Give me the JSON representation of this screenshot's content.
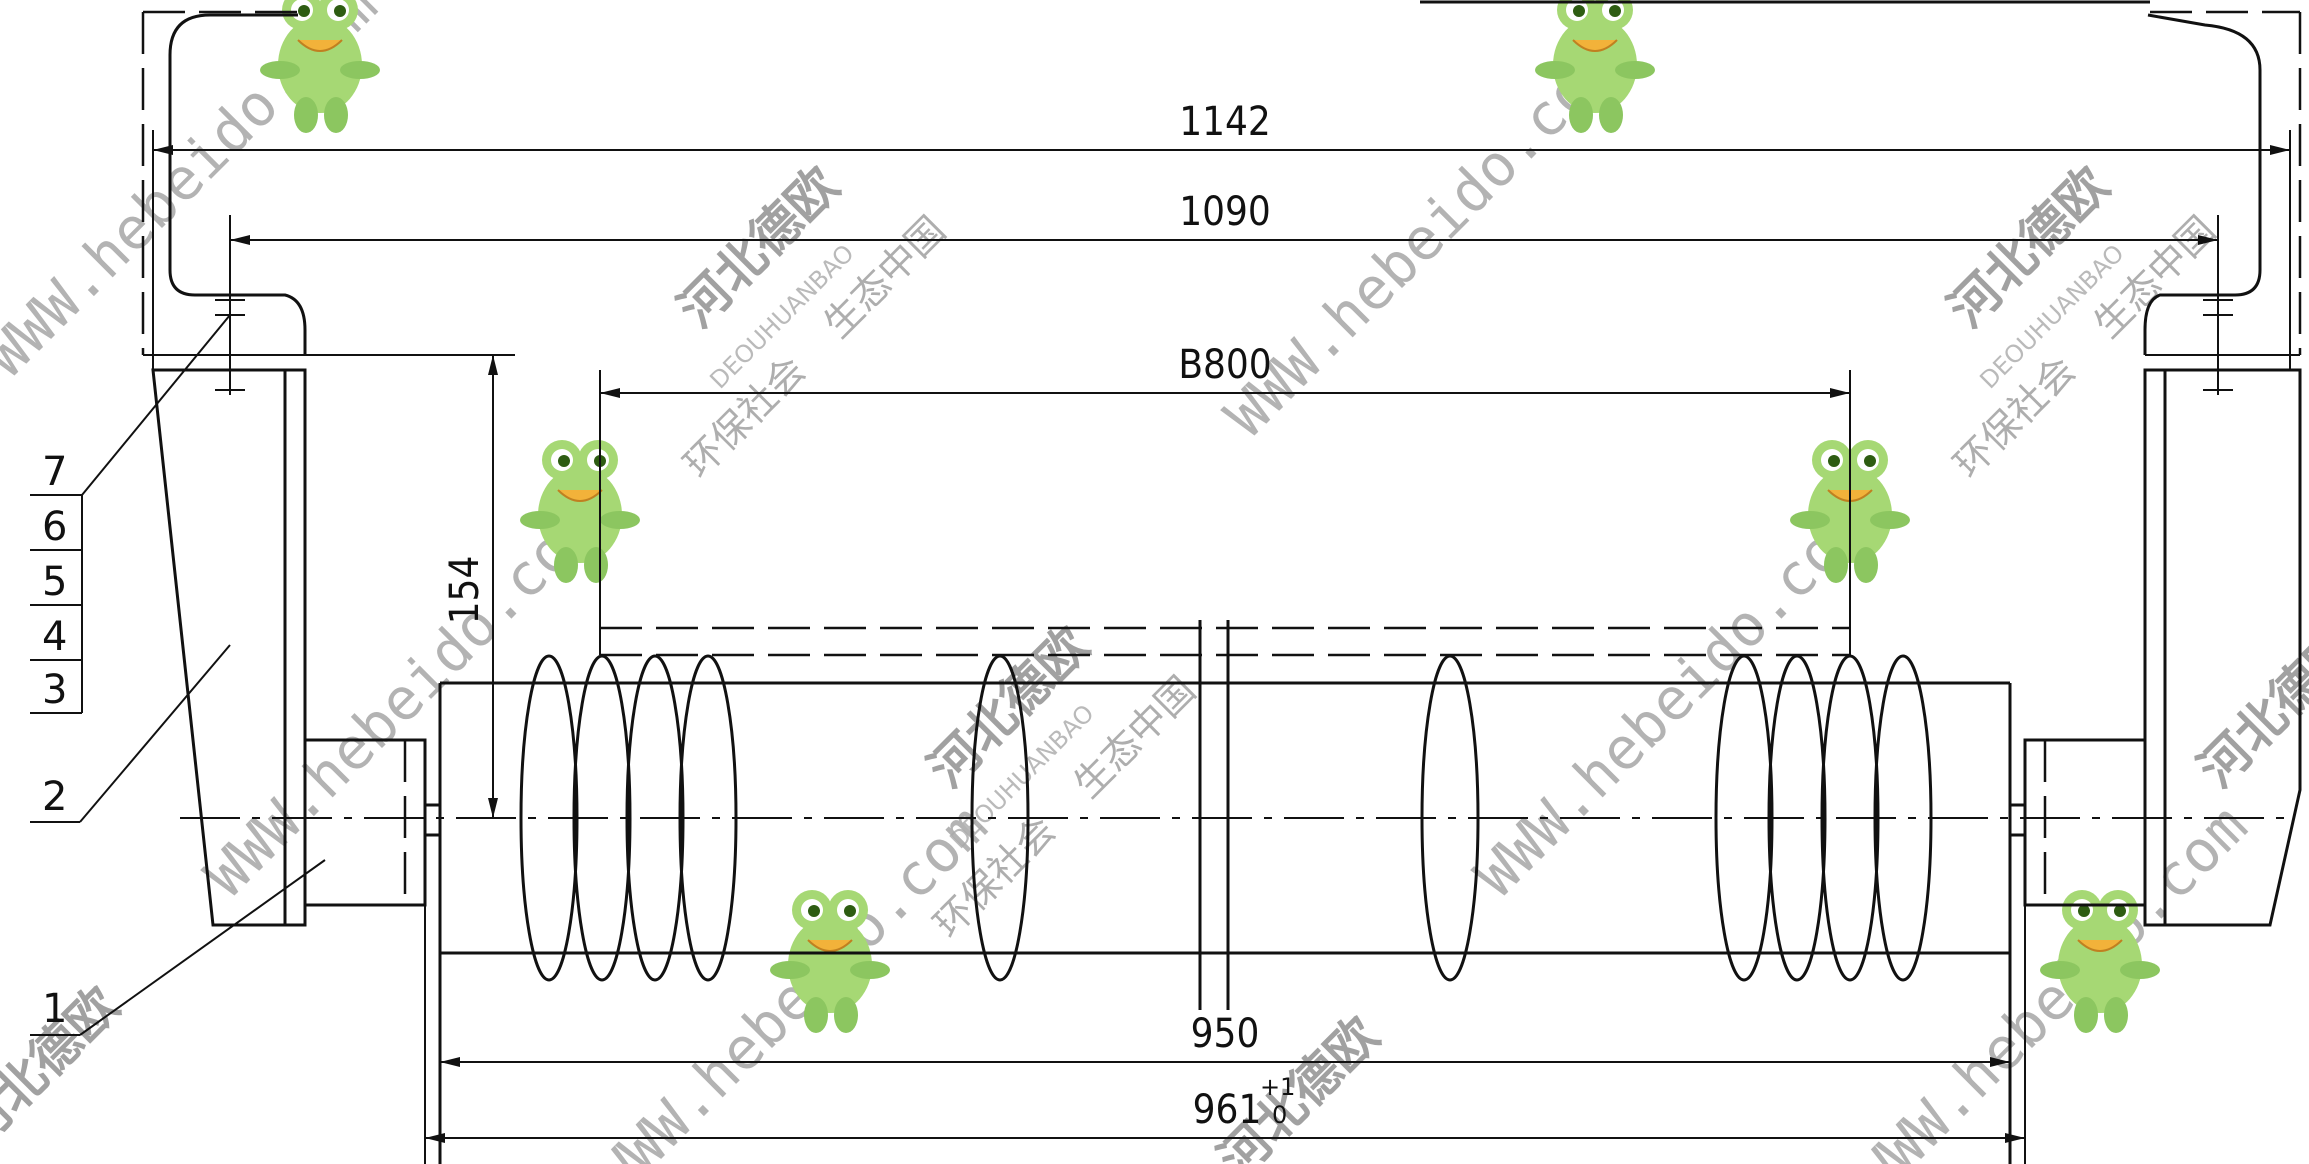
{
  "dimensions": {
    "overall_width": "1142",
    "mount_width": "1090",
    "belt_width": "B800",
    "height": "154",
    "roller_length": "950",
    "shaft_length": "961",
    "shaft_tolerance_upper": "+1",
    "shaft_tolerance_lower": "0"
  },
  "callouts": [
    "7",
    "6",
    "5",
    "4",
    "3",
    "2",
    "1"
  ],
  "watermark": {
    "url": "WWW.hebeido.com",
    "brand_cn": "河北德欧",
    "brand_pinyin": "DEOUHUANBAO",
    "slogan_cn_1": "环保社会",
    "slogan_cn_2": "生态中国"
  },
  "colors": {
    "line": "#111111",
    "frog_green": "#9ed36a",
    "watermark_gray": "#9a9a9a"
  }
}
